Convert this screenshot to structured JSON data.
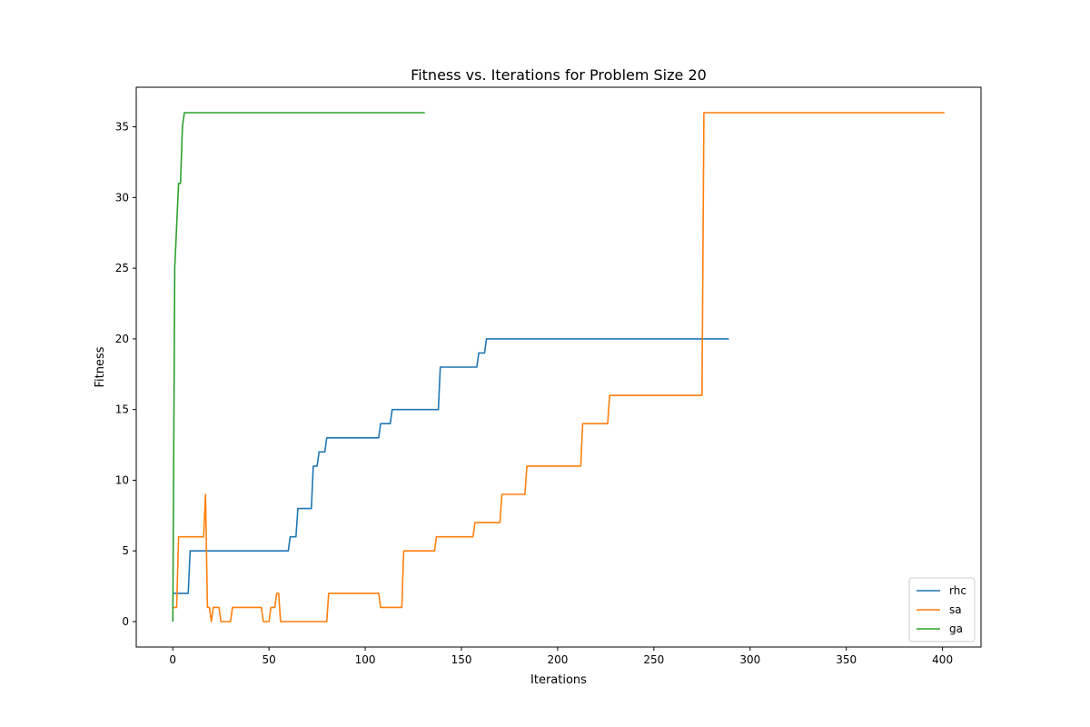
{
  "chart_data": {
    "type": "line",
    "title": "Fitness vs. Iterations for Problem Size 20",
    "xlabel": "Iterations",
    "ylabel": "Fitness",
    "xlim": [
      -19,
      420
    ],
    "ylim": [
      -1.8,
      37.8
    ],
    "xticks": [
      0,
      50,
      100,
      150,
      200,
      250,
      300,
      350,
      400
    ],
    "yticks": [
      0,
      5,
      10,
      15,
      20,
      25,
      30,
      35
    ],
    "grid": false,
    "legend_position": "lower-right",
    "series": [
      {
        "name": "rhc",
        "color": "#1f77b4",
        "points": [
          [
            0,
            2
          ],
          [
            8,
            2
          ],
          [
            9,
            5
          ],
          [
            60,
            5
          ],
          [
            61,
            6
          ],
          [
            64,
            6
          ],
          [
            65,
            8
          ],
          [
            72,
            8
          ],
          [
            73,
            11
          ],
          [
            75,
            11
          ],
          [
            76,
            12
          ],
          [
            79,
            12
          ],
          [
            80,
            13
          ],
          [
            107,
            13
          ],
          [
            108,
            14
          ],
          [
            113,
            14
          ],
          [
            114,
            15
          ],
          [
            138,
            15
          ],
          [
            139,
            18
          ],
          [
            158,
            18
          ],
          [
            159,
            19
          ],
          [
            162,
            19
          ],
          [
            163,
            20
          ],
          [
            289,
            20
          ]
        ]
      },
      {
        "name": "sa",
        "color": "#ff7f0e",
        "points": [
          [
            0,
            1
          ],
          [
            2,
            1
          ],
          [
            3,
            6
          ],
          [
            16,
            6
          ],
          [
            17,
            9
          ],
          [
            18,
            1
          ],
          [
            19,
            1
          ],
          [
            20,
            0
          ],
          [
            21,
            1
          ],
          [
            24,
            1
          ],
          [
            25,
            0
          ],
          [
            30,
            0
          ],
          [
            31,
            1
          ],
          [
            46,
            1
          ],
          [
            47,
            0
          ],
          [
            50,
            0
          ],
          [
            51,
            1
          ],
          [
            53,
            1
          ],
          [
            54,
            2
          ],
          [
            55,
            2
          ],
          [
            56,
            0
          ],
          [
            80,
            0
          ],
          [
            81,
            2
          ],
          [
            107,
            2
          ],
          [
            108,
            1
          ],
          [
            119,
            1
          ],
          [
            120,
            5
          ],
          [
            136,
            5
          ],
          [
            137,
            6
          ],
          [
            156,
            6
          ],
          [
            157,
            7
          ],
          [
            170,
            7
          ],
          [
            171,
            9
          ],
          [
            183,
            9
          ],
          [
            184,
            11
          ],
          [
            212,
            11
          ],
          [
            213,
            14
          ],
          [
            226,
            14
          ],
          [
            227,
            16
          ],
          [
            275,
            16
          ],
          [
            276,
            36
          ],
          [
            401,
            36
          ]
        ]
      },
      {
        "name": "ga",
        "color": "#2ca02c",
        "points": [
          [
            0,
            0
          ],
          [
            1,
            25
          ],
          [
            3,
            31
          ],
          [
            4,
            31
          ],
          [
            5,
            35
          ],
          [
            6,
            36
          ],
          [
            131,
            36
          ]
        ]
      }
    ]
  }
}
